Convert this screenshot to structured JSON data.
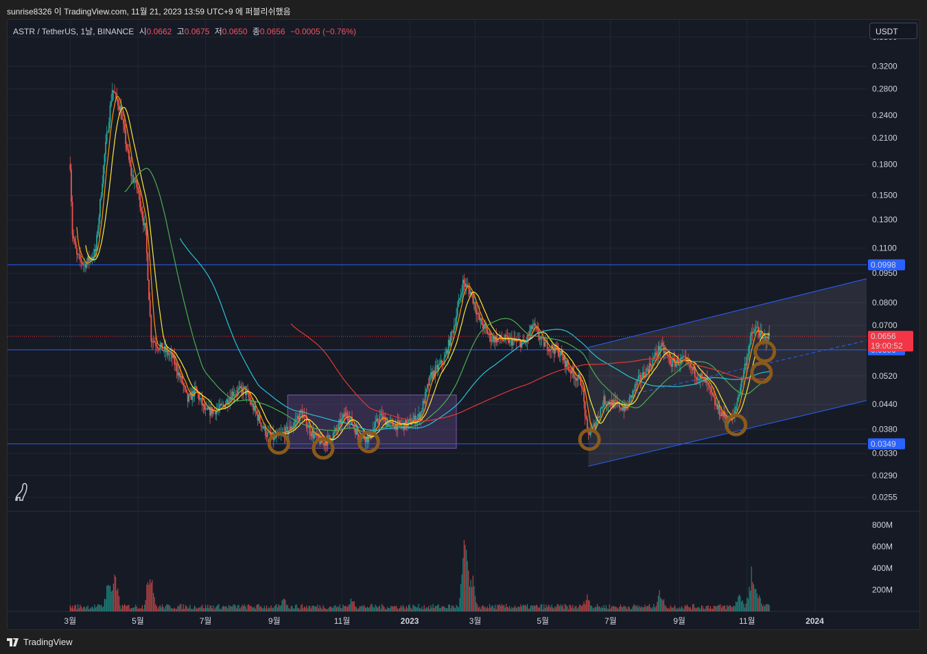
{
  "header": {
    "title": "sunrise8326 이 TradingView.com, 11월 21, 2023 13:59 UTC+9 에 퍼블리쉬했음"
  },
  "legend": {
    "symbol": "ASTR / TetherUS, 1날, BINANCE",
    "open_label": "시",
    "open": "0.0662",
    "high_label": "고",
    "high": "0.0675",
    "low_label": "저",
    "low": "0.0650",
    "close_label": "종",
    "close": "0.0656",
    "change": "−0.0005 (−0.76%)"
  },
  "currency_button": "USDT",
  "footer": {
    "brand": "TradingView"
  },
  "colors": {
    "background": "#161a25",
    "up": "#26a69a",
    "down": "#ef5350",
    "level_line": "#2962ff",
    "price_tag": "#f23645",
    "ma_yellow": "#ffeb3b",
    "ma_orange": "#ff9800",
    "ma_green": "#4caf50",
    "ma_cyan": "#26c6da",
    "ma_red": "#e53935",
    "circle_marker": "#8a5a1c",
    "box_fill": "#9c6fd6"
  },
  "chart_data": {
    "type": "candlestick",
    "scale": "log",
    "y_ticks": [
      "0.3800",
      "0.3200",
      "0.2800",
      "0.2400",
      "0.2100",
      "0.1800",
      "0.1500",
      "0.1300",
      "0.1100",
      "0.0950",
      "0.0800",
      "0.0700",
      "0.0520",
      "0.0440",
      "0.0380",
      "0.0330",
      "0.0290",
      "0.0255"
    ],
    "x_ticks": [
      "3월",
      "5월",
      "7월",
      "9월",
      "11월",
      "2023",
      "3월",
      "5월",
      "7월",
      "9월",
      "11월",
      "2024"
    ],
    "x_ticks_bold": [
      "2023",
      "2024"
    ],
    "volume_ticks": [
      "800M",
      "600M",
      "400M",
      "200M"
    ],
    "horizontal_levels": [
      {
        "value": 0.0998,
        "label": "0.0998"
      },
      {
        "value": 0.0606,
        "label": "0.0606"
      },
      {
        "value": 0.0349,
        "label": "0.0349"
      }
    ],
    "last_price": {
      "value": 0.0656,
      "label": "0.0656",
      "countdown": "19:00:52"
    },
    "price_path": [
      [
        "2022-03-01",
        0.18
      ],
      [
        "2022-03-03",
        0.12
      ],
      [
        "2022-03-07",
        0.105
      ],
      [
        "2022-03-14",
        0.1
      ],
      [
        "2022-03-24",
        0.108
      ],
      [
        "2022-04-01",
        0.19
      ],
      [
        "2022-04-08",
        0.28
      ],
      [
        "2022-04-15",
        0.25
      ],
      [
        "2022-04-25",
        0.17
      ],
      [
        "2022-05-01",
        0.155
      ],
      [
        "2022-05-08",
        0.12
      ],
      [
        "2022-05-13",
        0.065
      ],
      [
        "2022-05-20",
        0.062
      ],
      [
        "2022-06-01",
        0.058
      ],
      [
        "2022-06-10",
        0.05
      ],
      [
        "2022-06-15",
        0.045
      ],
      [
        "2022-06-22",
        0.048
      ],
      [
        "2022-07-01",
        0.042
      ],
      [
        "2022-07-15",
        0.043
      ],
      [
        "2022-07-25",
        0.047
      ],
      [
        "2022-08-05",
        0.048
      ],
      [
        "2022-08-15",
        0.042
      ],
      [
        "2022-08-25",
        0.037
      ],
      [
        "2022-09-01",
        0.036
      ],
      [
        "2022-09-15",
        0.038
      ],
      [
        "2022-09-25",
        0.042
      ],
      [
        "2022-10-05",
        0.037
      ],
      [
        "2022-10-15",
        0.035
      ],
      [
        "2022-10-25",
        0.037
      ],
      [
        "2022-11-05",
        0.042
      ],
      [
        "2022-11-15",
        0.037
      ],
      [
        "2022-11-25",
        0.036
      ],
      [
        "2022-12-05",
        0.041
      ],
      [
        "2022-12-15",
        0.039
      ],
      [
        "2022-12-28",
        0.039
      ],
      [
        "2023-01-10",
        0.041
      ],
      [
        "2023-01-20",
        0.052
      ],
      [
        "2023-02-01",
        0.057
      ],
      [
        "2023-02-10",
        0.07
      ],
      [
        "2023-02-18",
        0.09
      ],
      [
        "2023-02-25",
        0.085
      ],
      [
        "2023-03-05",
        0.072
      ],
      [
        "2023-03-15",
        0.065
      ],
      [
        "2023-04-01",
        0.064
      ],
      [
        "2023-04-15",
        0.063
      ],
      [
        "2023-04-22",
        0.07
      ],
      [
        "2023-05-01",
        0.063
      ],
      [
        "2023-05-15",
        0.06
      ],
      [
        "2023-05-25",
        0.054
      ],
      [
        "2023-06-05",
        0.05
      ],
      [
        "2023-06-10",
        0.037
      ],
      [
        "2023-06-15",
        0.038
      ],
      [
        "2023-06-25",
        0.045
      ],
      [
        "2023-07-05",
        0.044
      ],
      [
        "2023-07-15",
        0.043
      ],
      [
        "2023-07-25",
        0.05
      ],
      [
        "2023-08-05",
        0.055
      ],
      [
        "2023-08-15",
        0.062
      ],
      [
        "2023-08-25",
        0.056
      ],
      [
        "2023-09-05",
        0.057
      ],
      [
        "2023-09-15",
        0.053
      ],
      [
        "2023-09-25",
        0.05
      ],
      [
        "2023-10-05",
        0.043
      ],
      [
        "2023-10-15",
        0.04
      ],
      [
        "2023-10-20",
        0.041
      ],
      [
        "2023-10-28",
        0.052
      ],
      [
        "2023-11-05",
        0.066
      ],
      [
        "2023-11-10",
        0.069
      ],
      [
        "2023-11-15",
        0.064
      ],
      [
        "2023-11-21",
        0.0656
      ]
    ],
    "volume_spikes": [
      [
        "2022-04-05",
        400
      ],
      [
        "2022-04-10",
        450
      ],
      [
        "2022-05-12",
        550
      ],
      [
        "2022-09-10",
        160
      ],
      [
        "2022-11-10",
        160
      ],
      [
        "2023-02-20",
        820
      ],
      [
        "2023-02-25",
        520
      ],
      [
        "2023-06-10",
        190
      ],
      [
        "2023-08-15",
        240
      ],
      [
        "2023-10-25",
        220
      ],
      [
        "2023-11-05",
        460
      ],
      [
        "2023-11-10",
        300
      ]
    ]
  }
}
